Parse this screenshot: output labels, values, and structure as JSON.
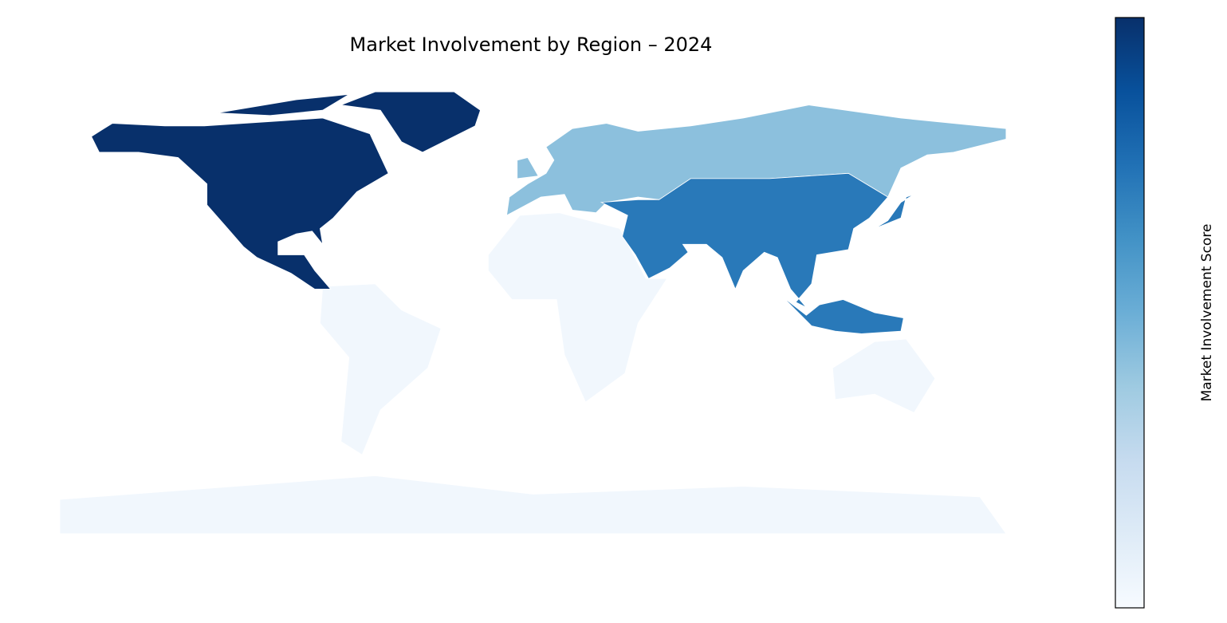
{
  "chart_data": {
    "type": "choropleth",
    "title": "Market Involvement by Region – 2024",
    "colorbar_label": "Market Involvement Score",
    "colormap": "Blues",
    "clim": [
      0,
      1
    ],
    "values": [
      1.0,
      0.72,
      0.42,
      0.03
    ]
  }
}
